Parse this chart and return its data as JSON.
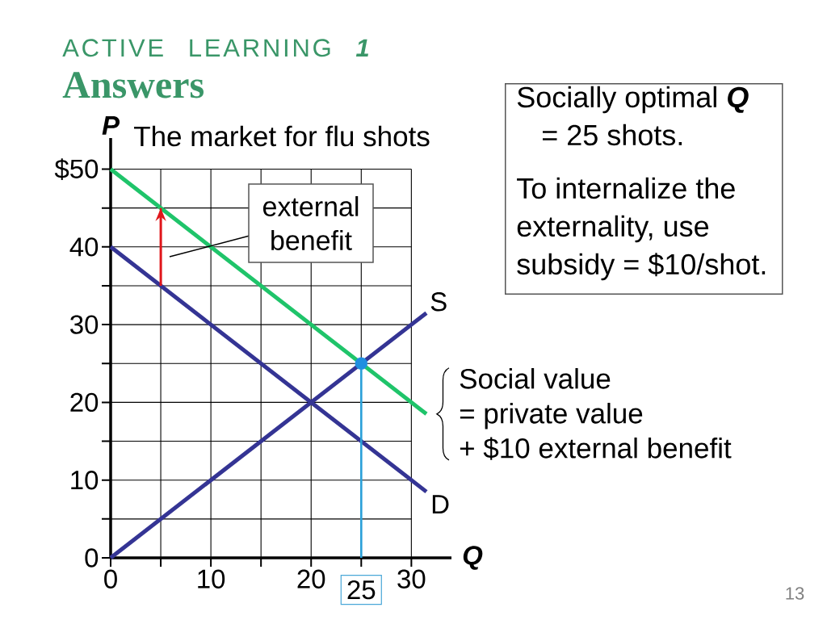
{
  "chart_data": {
    "type": "line",
    "title": "ACTIVE LEARNING **1**",
    "subtitle": "Answers",
    "xlabel": "Q",
    "ylabel": "P",
    "xlim": [
      0,
      34
    ],
    "ylim": [
      0,
      54
    ],
    "xticks": [
      0,
      {
        "value": 5,
        "label": null
      },
      10,
      {
        "value": 15,
        "label": null
      },
      20,
      {
        "value": 25,
        "label": null
      },
      30
    ],
    "yticks": [
      0,
      {
        "value": 5,
        "label": null
      },
      10,
      {
        "value": 15,
        "label": null
      },
      20,
      {
        "value": 25,
        "label": null
      },
      30,
      {
        "value": 35,
        "label": null
      },
      40,
      {
        "value": 45,
        "label": null
      },
      {
        "value": 50,
        "label": "$50"
      }
    ],
    "grid": true,
    "series": [
      {
        "name": "S",
        "color": "#343494",
        "x": [
          0,
          31.5
        ],
        "values": [
          0,
          31.5
        ]
      },
      {
        "name": "D",
        "color": "#343494",
        "x": [
          0,
          31.5
        ],
        "values": [
          40,
          8.5
        ]
      },
      {
        "name": "Social value\n= private value\n+ $10 external benefit",
        "color": "#1fc46a",
        "x": [
          0,
          31.5
        ],
        "values": [
          50,
          18.5
        ]
      },
      {
        "color": "#2aa0d8",
        "x": [
          25,
          25
        ],
        "values": [
          25,
          0
        ]
      },
      {
        "color": "#e0161b",
        "x": [
          5,
          5
        ],
        "values": [
          35,
          45
        ]
      },
      {
        "type": "scatter",
        "color": "#1f8fe0",
        "marker": "circle",
        "x": [
          25
        ],
        "values": [
          25
        ]
      }
    ],
    "annotations": [
      "The market for flu shots",
      "external benefit",
      {
        "text": "25",
        "x": 25,
        "y": 0
      },
      "Socially optimal **Q** = 25 shots.",
      "To internalize the externality, use subsidy = $10/shot.",
      "13"
    ]
  }
}
